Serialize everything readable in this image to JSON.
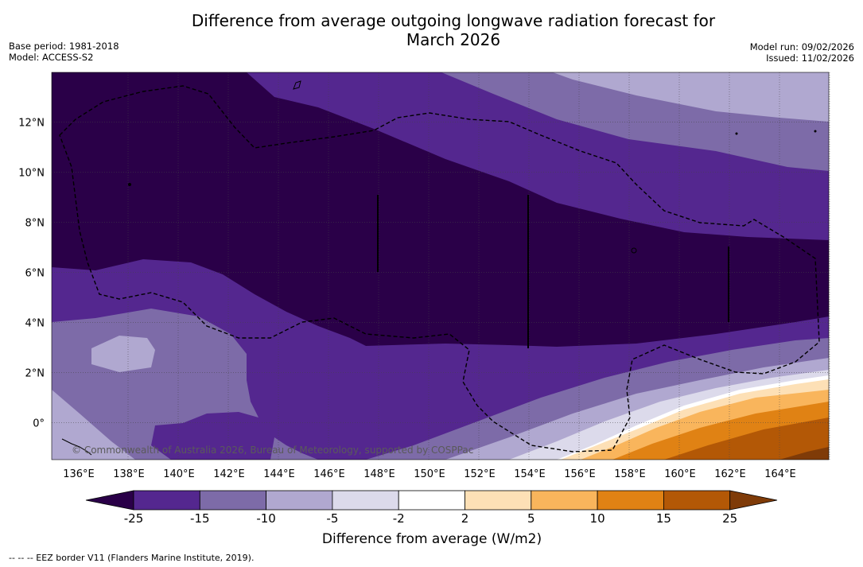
{
  "header": {
    "title_line1": "Difference from average outgoing longwave radiation forecast for",
    "title_line2": "March 2026",
    "base_period": "Base period: 1981-2018",
    "model": "Model: ACCESS-S2",
    "model_run": "Model run: 09/02/2026",
    "issued": "Issued: 11/02/2026"
  },
  "map": {
    "x_ticks": [
      "136°E",
      "138°E",
      "140°E",
      "142°E",
      "144°E",
      "146°E",
      "148°E",
      "150°E",
      "152°E",
      "154°E",
      "156°E",
      "158°E",
      "160°E",
      "162°E",
      "164°E"
    ],
    "y_ticks": [
      "12°N",
      "10°N",
      "8°N",
      "6°N",
      "4°N",
      "2°N",
      "0°"
    ],
    "credit": "© Commonwealth of Australia 2026, Bureau of Meteorology, supported by COSPPac"
  },
  "colorbar": {
    "labels": [
      "-25",
      "-15",
      "-10",
      "-5",
      "-2",
      "2",
      "5",
      "10",
      "15",
      "25"
    ],
    "colors": [
      "#2a0048",
      "#54278f",
      "#7d6ba8",
      "#b0a8d0",
      "#dcdaeb",
      "#ffffff",
      "#fde0b6",
      "#f9b55c",
      "#e08214",
      "#b35806",
      "#7f3b08"
    ],
    "title": "Difference from average (W/m2)"
  },
  "footnote": "--  --  -- EEZ border V11 (Flanders Marine Institute, 2019)."
}
